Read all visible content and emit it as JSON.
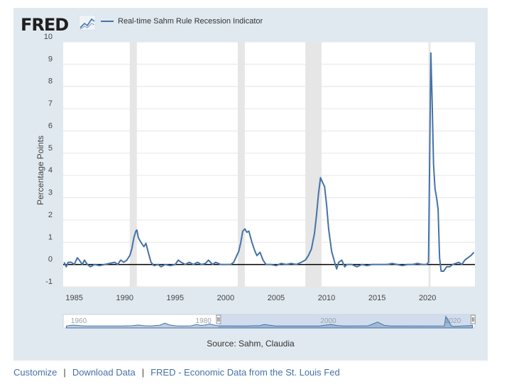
{
  "header": {
    "logo_text": "FRED",
    "legend_label": "Real-time Sahm Rule Recession Indicator"
  },
  "source_text": "Source: Sahm, Claudia",
  "footer": {
    "customize": "Customize",
    "separator": "|",
    "download": "Download Data",
    "fred_link": "FRED - Economic Data from the St. Louis Fed"
  },
  "colors": {
    "series": "#4572a7",
    "recession": "#e6e6e6",
    "frame": "#e1e9f0",
    "navigator_fill": "#c6d4e8",
    "zero_line": "#000000"
  },
  "chart_data": {
    "type": "line",
    "ylabel": "Percentage Points",
    "xlabel": "",
    "xlim": [
      1983.9,
      2024.7
    ],
    "ylim": [
      -1,
      10
    ],
    "y_ticks": [
      "-1",
      "0",
      "1",
      "2",
      "3",
      "4",
      "5",
      "6",
      "7",
      "8",
      "9",
      "10"
    ],
    "x_ticks": [
      "1985",
      "1990",
      "1995",
      "2000",
      "2005",
      "2010",
      "2015",
      "2020"
    ],
    "recessions": [
      [
        1990.5,
        1991.2
      ],
      [
        2001.2,
        2001.9
      ],
      [
        2007.9,
        2009.5
      ],
      [
        2020.1,
        2020.3
      ]
    ],
    "zero_line": 0,
    "series": [
      {
        "name": "Real-time Sahm Rule Recession Indicator",
        "points": [
          [
            1984.0,
            0.1
          ],
          [
            1984.2,
            -0.1
          ],
          [
            1984.4,
            0.1
          ],
          [
            1984.7,
            0.1
          ],
          [
            1985.0,
            0.0
          ],
          [
            1985.3,
            0.3
          ],
          [
            1985.5,
            0.2
          ],
          [
            1985.8,
            0.0
          ],
          [
            1986.0,
            0.2
          ],
          [
            1986.3,
            0.0
          ],
          [
            1986.6,
            -0.1
          ],
          [
            1987.0,
            0.0
          ],
          [
            1987.5,
            -0.05
          ],
          [
            1988.0,
            0.0
          ],
          [
            1988.5,
            0.05
          ],
          [
            1989.0,
            0.1
          ],
          [
            1989.3,
            0.0
          ],
          [
            1989.6,
            0.2
          ],
          [
            1989.9,
            0.1
          ],
          [
            1990.2,
            0.2
          ],
          [
            1990.5,
            0.4
          ],
          [
            1990.7,
            0.7
          ],
          [
            1990.9,
            1.2
          ],
          [
            1991.1,
            1.5
          ],
          [
            1991.2,
            1.55
          ],
          [
            1991.35,
            1.2
          ],
          [
            1991.6,
            1.0
          ],
          [
            1991.9,
            0.8
          ],
          [
            1992.1,
            0.95
          ],
          [
            1992.3,
            0.6
          ],
          [
            1992.6,
            0.1
          ],
          [
            1992.9,
            -0.05
          ],
          [
            1993.3,
            0.0
          ],
          [
            1993.6,
            -0.1
          ],
          [
            1994.0,
            0.0
          ],
          [
            1994.5,
            -0.05
          ],
          [
            1995.0,
            0.0
          ],
          [
            1995.3,
            0.2
          ],
          [
            1995.6,
            0.1
          ],
          [
            1996.0,
            0.0
          ],
          [
            1996.4,
            0.1
          ],
          [
            1996.8,
            0.0
          ],
          [
            1997.2,
            0.1
          ],
          [
            1997.6,
            0.0
          ],
          [
            1998.0,
            0.05
          ],
          [
            1998.3,
            0.2
          ],
          [
            1998.7,
            0.0
          ],
          [
            1999.0,
            0.1
          ],
          [
            1999.5,
            0.0
          ],
          [
            2000.0,
            0.0
          ],
          [
            2000.5,
            0.0
          ],
          [
            2000.8,
            0.1
          ],
          [
            2001.0,
            0.3
          ],
          [
            2001.3,
            0.6
          ],
          [
            2001.5,
            1.0
          ],
          [
            2001.7,
            1.5
          ],
          [
            2001.9,
            1.6
          ],
          [
            2002.1,
            1.45
          ],
          [
            2002.3,
            1.5
          ],
          [
            2002.6,
            1.0
          ],
          [
            2002.9,
            0.6
          ],
          [
            2003.1,
            0.4
          ],
          [
            2003.4,
            0.55
          ],
          [
            2003.7,
            0.2
          ],
          [
            2004.0,
            0.0
          ],
          [
            2004.5,
            0.0
          ],
          [
            2005.0,
            -0.05
          ],
          [
            2005.5,
            0.05
          ],
          [
            2006.0,
            0.0
          ],
          [
            2006.5,
            0.05
          ],
          [
            2007.0,
            0.0
          ],
          [
            2007.5,
            0.1
          ],
          [
            2007.9,
            0.2
          ],
          [
            2008.2,
            0.4
          ],
          [
            2008.5,
            0.7
          ],
          [
            2008.8,
            1.4
          ],
          [
            2009.0,
            2.2
          ],
          [
            2009.2,
            3.2
          ],
          [
            2009.4,
            3.9
          ],
          [
            2009.6,
            3.7
          ],
          [
            2009.8,
            3.5
          ],
          [
            2010.0,
            2.7
          ],
          [
            2010.2,
            1.6
          ],
          [
            2010.5,
            0.6
          ],
          [
            2010.8,
            0.1
          ],
          [
            2011.0,
            -0.2
          ],
          [
            2011.2,
            0.1
          ],
          [
            2011.5,
            0.2
          ],
          [
            2011.8,
            -0.1
          ],
          [
            2012.0,
            0.0
          ],
          [
            2012.5,
            0.0
          ],
          [
            2013.0,
            -0.1
          ],
          [
            2013.5,
            0.0
          ],
          [
            2014.0,
            -0.05
          ],
          [
            2014.5,
            0.0
          ],
          [
            2015.0,
            0.0
          ],
          [
            2015.5,
            0.0
          ],
          [
            2016.0,
            0.0
          ],
          [
            2016.5,
            0.05
          ],
          [
            2017.0,
            0.0
          ],
          [
            2017.5,
            -0.05
          ],
          [
            2018.0,
            0.0
          ],
          [
            2018.5,
            0.0
          ],
          [
            2019.0,
            0.05
          ],
          [
            2019.5,
            0.0
          ],
          [
            2019.9,
            0.0
          ],
          [
            2020.1,
            0.1
          ],
          [
            2020.25,
            6.0
          ],
          [
            2020.33,
            9.5
          ],
          [
            2020.45,
            7.5
          ],
          [
            2020.6,
            4.5
          ],
          [
            2020.75,
            3.4
          ],
          [
            2020.9,
            3.0
          ],
          [
            2021.05,
            2.5
          ],
          [
            2021.2,
            0.3
          ],
          [
            2021.35,
            -0.3
          ],
          [
            2021.6,
            -0.3
          ],
          [
            2021.9,
            -0.1
          ],
          [
            2022.2,
            -0.1
          ],
          [
            2022.5,
            0.0
          ],
          [
            2022.8,
            0.05
          ],
          [
            2023.1,
            0.1
          ],
          [
            2023.4,
            0.0
          ],
          [
            2023.7,
            0.2
          ],
          [
            2024.0,
            0.3
          ],
          [
            2024.3,
            0.4
          ],
          [
            2024.6,
            0.55
          ]
        ]
      }
    ],
    "navigator": {
      "ticks": [
        "1960",
        "1980",
        "2000",
        "2020"
      ],
      "points": [
        [
          1959.5,
          0.0
        ],
        [
          1960.5,
          0.9
        ],
        [
          1961.5,
          0.5
        ],
        [
          1962.5,
          0.0
        ],
        [
          1964,
          0.0
        ],
        [
          1966,
          0.0
        ],
        [
          1968,
          0.0
        ],
        [
          1970,
          0.3
        ],
        [
          1971,
          1.0
        ],
        [
          1972,
          0.3
        ],
        [
          1973,
          0.0
        ],
        [
          1974.5,
          0.8
        ],
        [
          1975.3,
          2.8
        ],
        [
          1976,
          1.2
        ],
        [
          1977,
          0.2
        ],
        [
          1978,
          0.0
        ],
        [
          1979.5,
          0.2
        ],
        [
          1980.4,
          1.5
        ],
        [
          1981,
          0.6
        ],
        [
          1981.8,
          1.0
        ],
        [
          1982.5,
          2.1
        ],
        [
          1983,
          1.2
        ],
        [
          1983.9,
          0.1
        ],
        [
          1985,
          0.1
        ],
        [
          1988,
          0.0
        ],
        [
          1990.5,
          0.4
        ],
        [
          1991.2,
          1.55
        ],
        [
          1992,
          0.9
        ],
        [
          1993,
          0.0
        ],
        [
          2000,
          0.0
        ],
        [
          2001.9,
          1.6
        ],
        [
          2003,
          0.4
        ],
        [
          2004,
          0.0
        ],
        [
          2007.9,
          0.2
        ],
        [
          2009.4,
          3.9
        ],
        [
          2010.5,
          0.6
        ],
        [
          2011.5,
          0.0
        ],
        [
          2020.1,
          0.1
        ],
        [
          2020.33,
          9.5
        ],
        [
          2021.2,
          0.3
        ],
        [
          2021.6,
          -0.3
        ],
        [
          2024.6,
          0.55
        ]
      ],
      "x_range": [
        1959,
        2025
      ],
      "selection": [
        1983.9,
        2024.7
      ]
    }
  }
}
